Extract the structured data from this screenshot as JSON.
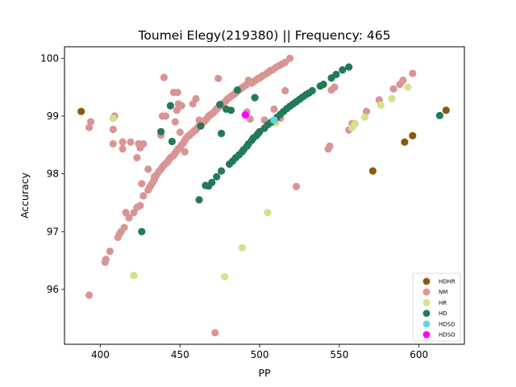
{
  "chart_data": {
    "type": "scatter",
    "title": "Toumei Elegy(219380) || Frequency: 465",
    "xlabel": "PP",
    "ylabel": "Accuracy",
    "xlim": [
      377.5,
      628.5
    ],
    "ylim": [
      95.05,
      100.2
    ],
    "xticks": [
      400,
      450,
      500,
      550,
      600
    ],
    "yticks": [
      96,
      97,
      98,
      99,
      100
    ],
    "grid": false,
    "legend_position": "lower-right",
    "series": [
      {
        "name": "HDHR",
        "color": "#8b5a0b",
        "points": [
          [
            388,
            99.08
          ],
          [
            571,
            98.05
          ],
          [
            591,
            98.55
          ],
          [
            596,
            98.66
          ],
          [
            617,
            99.1
          ]
        ]
      },
      {
        "name": "NM",
        "color": "#d99594",
        "points": [
          [
            393,
            95.9
          ],
          [
            393,
            98.8
          ],
          [
            394,
            98.9
          ],
          [
            403,
            96.47
          ],
          [
            403.5,
            96.52
          ],
          [
            406,
            96.66
          ],
          [
            408,
            98.52
          ],
          [
            408,
            98.77
          ],
          [
            409,
            99.0
          ],
          [
            411,
            96.9
          ],
          [
            412,
            96.96
          ],
          [
            413,
            97.0
          ],
          [
            414,
            98.43
          ],
          [
            414,
            98.55
          ],
          [
            415,
            97.07
          ],
          [
            416,
            97.33
          ],
          [
            418,
            97.24
          ],
          [
            419,
            98.55
          ],
          [
            421,
            97.33
          ],
          [
            423,
            97.42
          ],
          [
            423,
            98.28
          ],
          [
            424,
            98.52
          ],
          [
            425,
            97.45
          ],
          [
            425,
            98.45
          ],
          [
            426,
            97.83
          ],
          [
            427,
            97.62
          ],
          [
            427,
            98.52
          ],
          [
            430,
            97.72
          ],
          [
            430,
            98.08
          ],
          [
            431,
            97.77
          ],
          [
            432,
            97.81
          ],
          [
            433,
            97.86
          ],
          [
            434,
            97.91
          ],
          [
            434,
            97.95
          ],
          [
            435,
            97.97
          ],
          [
            436,
            98.01
          ],
          [
            437,
            98.05
          ],
          [
            438,
            98.08
          ],
          [
            438,
            98.67
          ],
          [
            439,
            98.12
          ],
          [
            439,
            99.0
          ],
          [
            440,
            98.15
          ],
          [
            440,
            99.67
          ],
          [
            441,
            98.18
          ],
          [
            441,
            99.0
          ],
          [
            442,
            98.2
          ],
          [
            443,
            98.24
          ],
          [
            444,
            98.28
          ],
          [
            444,
            99.18
          ],
          [
            445,
            98.3
          ],
          [
            446,
            98.32
          ],
          [
            446,
            99.41
          ],
          [
            447,
            98.36
          ],
          [
            447,
            98.9
          ],
          [
            448,
            98.4
          ],
          [
            448,
            99.1
          ],
          [
            448.5,
            99.41
          ],
          [
            449,
            98.44
          ],
          [
            449,
            99.21
          ],
          [
            450,
            98.46
          ],
          [
            450,
            98.72
          ],
          [
            451,
            98.5
          ],
          [
            451,
            99.18
          ],
          [
            452,
            98.53
          ],
          [
            453,
            98.38
          ],
          [
            453,
            98.58
          ],
          [
            454,
            98.62
          ],
          [
            455,
            98.65
          ],
          [
            456,
            98.66
          ],
          [
            457,
            98.7
          ],
          [
            458,
            98.72
          ],
          [
            458,
            99.21
          ],
          [
            459,
            98.75
          ],
          [
            460,
            98.76
          ],
          [
            460,
            99.3
          ],
          [
            461,
            98.8
          ],
          [
            462,
            98.83
          ],
          [
            462,
            98.93
          ],
          [
            463,
            98.86
          ],
          [
            464,
            98.88
          ],
          [
            465,
            98.9
          ],
          [
            466,
            98.93
          ],
          [
            467,
            98.96
          ],
          [
            468,
            99.0
          ],
          [
            469,
            99.02
          ],
          [
            470,
            99.04
          ],
          [
            471,
            99.06
          ],
          [
            472,
            95.25
          ],
          [
            472,
            99.09
          ],
          [
            473,
            99.12
          ],
          [
            474,
            99.15
          ],
          [
            474,
            99.65
          ],
          [
            475,
            99.17
          ],
          [
            476,
            99.2
          ],
          [
            477,
            99.22
          ],
          [
            478,
            99.24
          ],
          [
            479,
            99.27
          ],
          [
            480,
            99.3
          ],
          [
            481,
            99.32
          ],
          [
            482,
            99.34
          ],
          [
            483,
            99.36
          ],
          [
            484,
            99.38
          ],
          [
            485,
            99.4
          ],
          [
            486,
            99.43
          ],
          [
            487,
            99.45
          ],
          [
            488,
            99.47
          ],
          [
            489,
            99.49
          ],
          [
            490,
            99.51
          ],
          [
            491,
            99.53
          ],
          [
            492,
            99.55
          ],
          [
            492,
            99.07
          ],
          [
            493,
            99.62
          ],
          [
            494,
            98.95
          ],
          [
            495,
            99.57
          ],
          [
            496,
            99.59
          ],
          [
            497,
            99.61
          ],
          [
            498,
            99.63
          ],
          [
            499,
            99.65
          ],
          [
            500,
            99.66
          ],
          [
            501,
            99.68
          ],
          [
            502,
            99.7
          ],
          [
            503,
            98.93
          ],
          [
            504,
            99.73
          ],
          [
            505,
            99.75
          ],
          [
            506,
            99.77
          ],
          [
            507,
            99.79
          ],
          [
            508,
            99.8
          ],
          [
            509,
            99.12
          ],
          [
            510,
            99.84
          ],
          [
            512,
            99.87
          ],
          [
            513,
            98.96
          ],
          [
            514,
            99.9
          ],
          [
            516,
            99.44
          ],
          [
            516,
            99.93
          ],
          [
            519,
            100.0
          ],
          [
            523,
            97.78
          ],
          [
            543,
            98.43
          ],
          [
            544,
            98.48
          ],
          [
            545,
            99.45
          ],
          [
            547,
            99.5
          ],
          [
            556,
            98.76
          ],
          [
            558,
            98.87
          ],
          [
            567,
            99.08
          ],
          [
            575,
            99.28
          ],
          [
            584,
            99.47
          ],
          [
            588,
            99.55
          ],
          [
            590,
            99.62
          ],
          [
            596,
            99.74
          ]
        ]
      },
      {
        "name": "HR",
        "color": "#d7e08a",
        "points": [
          [
            408,
            98.96
          ],
          [
            421,
            96.24
          ],
          [
            478,
            96.22
          ],
          [
            489,
            96.72
          ],
          [
            505,
            97.33
          ],
          [
            510,
            98.88
          ],
          [
            558,
            98.8
          ],
          [
            560,
            98.87
          ],
          [
            566,
            98.98
          ],
          [
            576,
            99.19
          ],
          [
            583,
            99.3
          ],
          [
            593,
            99.5
          ]
        ]
      },
      {
        "name": "HD",
        "color": "#237a58",
        "points": [
          [
            426,
            97.0
          ],
          [
            438,
            98.73
          ],
          [
            444,
            99.18
          ],
          [
            445,
            98.56
          ],
          [
            462,
            97.55
          ],
          [
            463,
            98.83
          ],
          [
            466,
            97.8
          ],
          [
            468,
            97.79
          ],
          [
            470,
            97.85
          ],
          [
            473,
            97.95
          ],
          [
            475,
            99.2
          ],
          [
            476,
            98.05
          ],
          [
            476,
            98.7
          ],
          [
            479,
            99.12
          ],
          [
            481,
            98.17
          ],
          [
            482,
            99.1
          ],
          [
            483,
            98.22
          ],
          [
            485,
            98.28
          ],
          [
            486,
            99.45
          ],
          [
            487,
            98.33
          ],
          [
            489,
            98.38
          ],
          [
            490,
            98.42
          ],
          [
            492,
            98.48
          ],
          [
            493,
            98.52
          ],
          [
            495,
            98.58
          ],
          [
            496,
            98.62
          ],
          [
            497,
            99.32
          ],
          [
            498,
            98.66
          ],
          [
            499,
            98.7
          ],
          [
            500,
            98.73
          ],
          [
            503,
            98.79
          ],
          [
            505,
            98.85
          ],
          [
            507,
            98.89
          ],
          [
            509,
            98.93
          ],
          [
            511,
            98.98
          ],
          [
            513,
            99.03
          ],
          [
            515,
            99.08
          ],
          [
            517,
            99.13
          ],
          [
            519,
            99.17
          ],
          [
            521,
            99.21
          ],
          [
            523,
            99.25
          ],
          [
            525,
            99.29
          ],
          [
            527,
            99.33
          ],
          [
            529,
            99.37
          ],
          [
            531,
            99.4
          ],
          [
            533,
            99.44
          ],
          [
            538,
            99.52
          ],
          [
            540,
            99.55
          ],
          [
            545,
            99.66
          ],
          [
            548,
            99.72
          ],
          [
            552,
            99.8
          ],
          [
            556,
            99.85
          ],
          [
            613,
            99.01
          ]
        ]
      },
      {
        "name": "HDSD",
        "color": "#5ed8de",
        "points": [
          [
            509,
            98.93
          ]
        ]
      },
      {
        "name": "HDSO",
        "color": "#ff00ff",
        "points": [
          [
            491,
            99.02
          ]
        ]
      }
    ]
  }
}
